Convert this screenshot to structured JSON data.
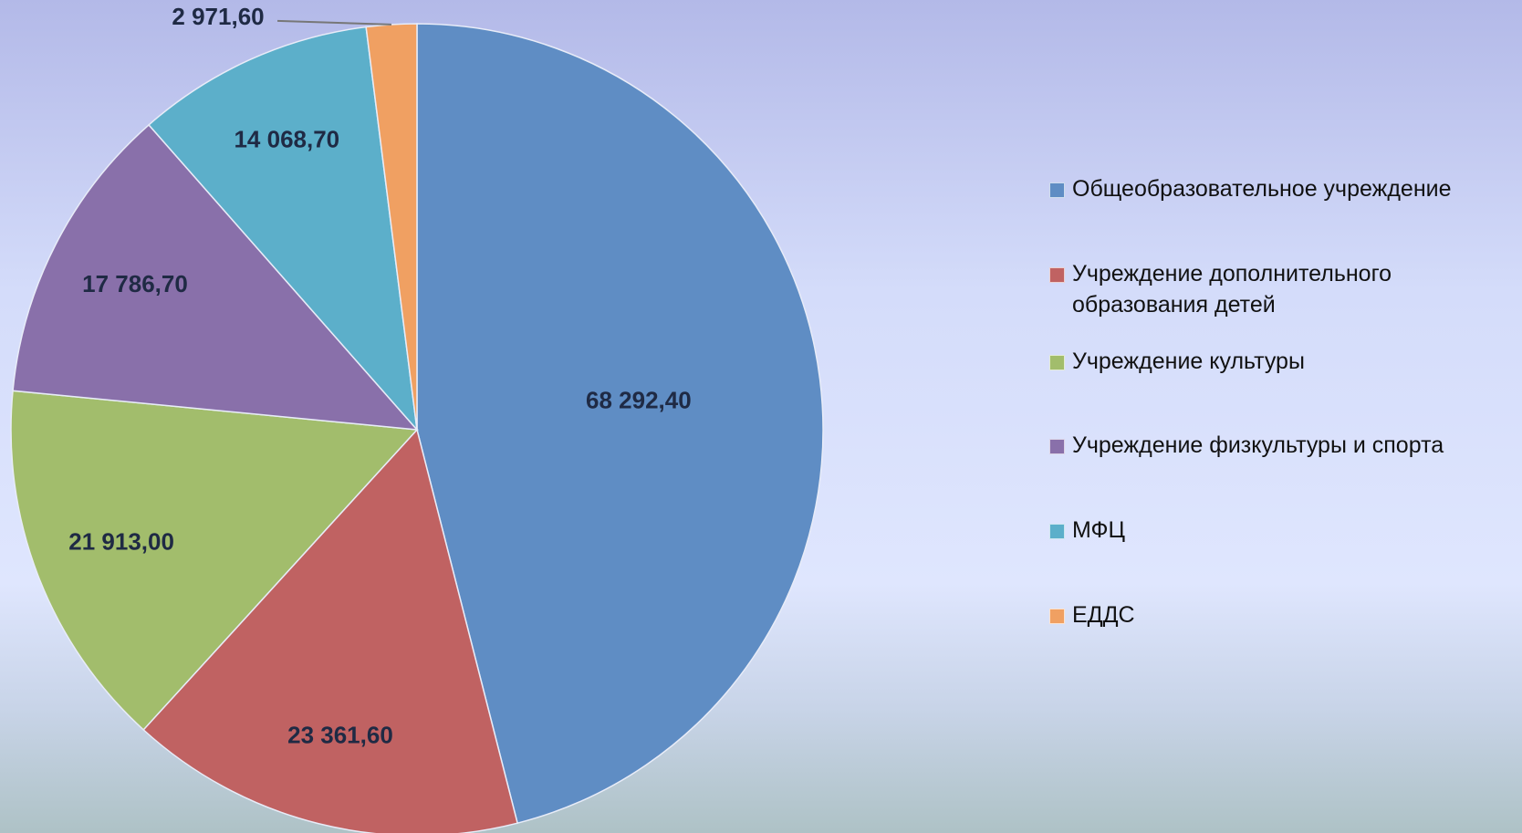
{
  "chart_data": {
    "type": "pie",
    "categories": [
      "Общеобразовательное учреждение",
      "Учреждение дополнительного образования детей",
      "Учреждение культуры",
      "Учреждение физкультуры и спорта",
      "МФЦ",
      "ЕДДС"
    ],
    "values": [
      68292.4,
      23361.6,
      21913.0,
      17786.7,
      14068.7,
      2971.6
    ],
    "value_labels": [
      "68 292,40",
      "23 361,60",
      "21 913,00",
      "17 786,70",
      "14 068,70",
      "2 971,60"
    ],
    "colors": [
      "#5f8dc4",
      "#c06262",
      "#a2bd6c",
      "#8970aa",
      "#5cafca",
      "#f0a062"
    ],
    "legend": "right"
  }
}
